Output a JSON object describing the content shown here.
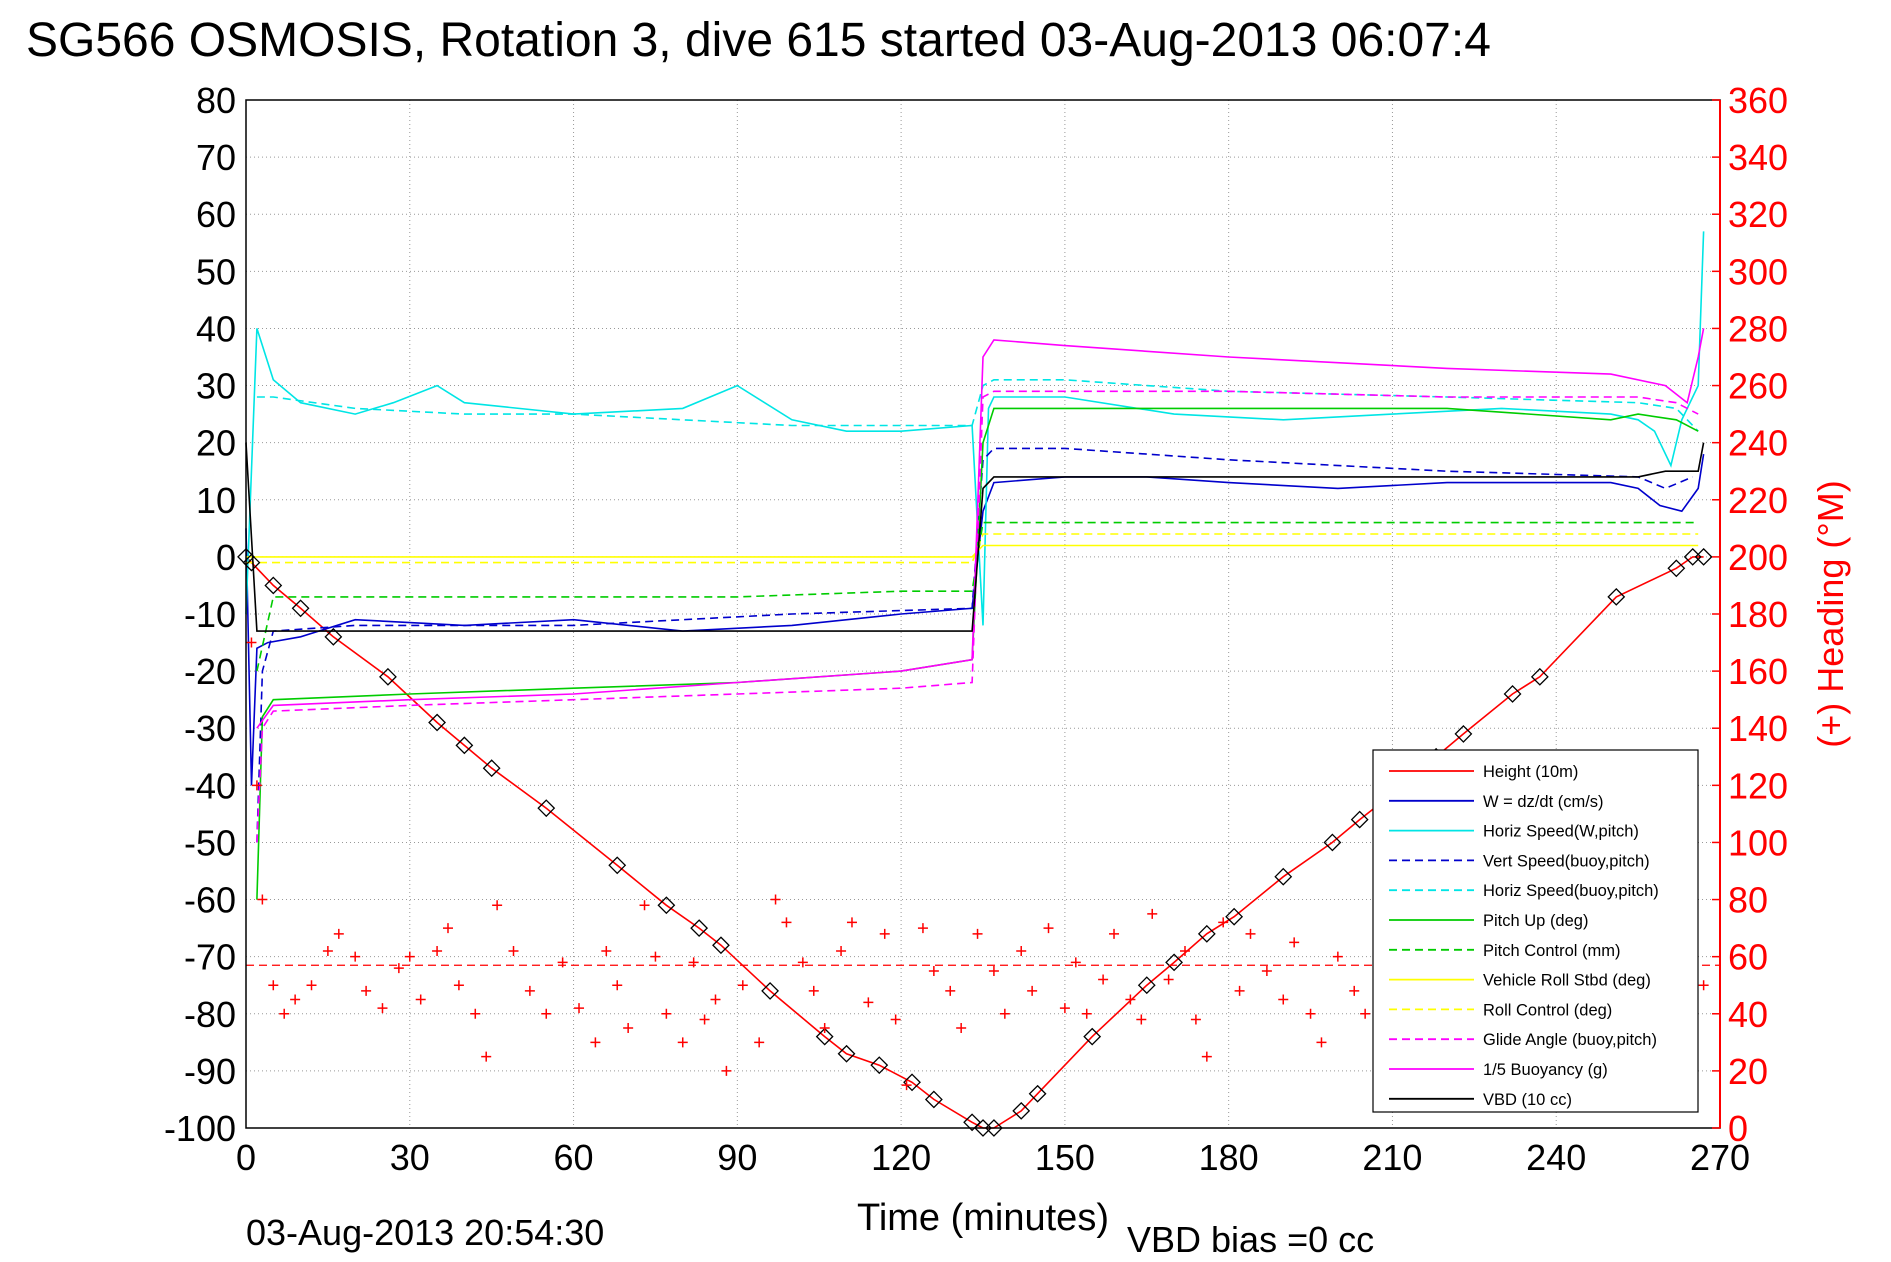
{
  "chart_data": {
    "type": "line",
    "title": "SG566 OSMOSIS, Rotation 3, dive 615 started 03-Aug-2013 06:07:4",
    "xlabel": "Time (minutes)",
    "ylabel_right": "(+) Heading (°M)",
    "xlim": [
      0,
      270
    ],
    "ylim": [
      -100,
      80
    ],
    "ylim_right": [
      0,
      360
    ],
    "x_ticks": [
      "0",
      "30",
      "60",
      "90",
      "120",
      "150",
      "180",
      "210",
      "240",
      "270"
    ],
    "y_ticks": [
      "80",
      "70",
      "60",
      "50",
      "40",
      "30",
      "20",
      "10",
      "0",
      "-10",
      "-20",
      "-30",
      "-40",
      "-50",
      "-60",
      "-70",
      "-80",
      "-90",
      "-100"
    ],
    "y_right_ticks": [
      "360",
      "340",
      "320",
      "300",
      "280",
      "260",
      "240",
      "220",
      "200",
      "180",
      "160",
      "140",
      "120",
      "100",
      "80",
      "60",
      "40",
      "20",
      "0"
    ],
    "grid": true,
    "legend_position": "bottom-right",
    "footer_left": "03-Aug-2013 20:54:30",
    "footer_center": "VBD bias =0 cc",
    "legend": [
      {
        "label": "Height (10m)",
        "color": "#ff0000",
        "dash": "solid"
      },
      {
        "label": "W = dz/dt (cm/s)",
        "color": "#0000cc",
        "dash": "solid"
      },
      {
        "label": "Horiz Speed(W,pitch)",
        "color": "#00e5e5",
        "dash": "solid"
      },
      {
        "label": "Vert Speed(buoy,pitch)",
        "color": "#0000cc",
        "dash": "dashed"
      },
      {
        "label": "Horiz Speed(buoy,pitch)",
        "color": "#00e5e5",
        "dash": "dashed"
      },
      {
        "label": "Pitch Up (deg)",
        "color": "#00cc00",
        "dash": "solid"
      },
      {
        "label": "Pitch Control (mm)",
        "color": "#00cc00",
        "dash": "dashed"
      },
      {
        "label": "Vehicle Roll Stbd (deg)",
        "color": "#ffff00",
        "dash": "solid"
      },
      {
        "label": "Roll Control (deg)",
        "color": "#ffff00",
        "dash": "dashed"
      },
      {
        "label": "Glide Angle (buoy,pitch)",
        "color": "#ff00ff",
        "dash": "dashed"
      },
      {
        "label": "1/5 Buoyancy (g)",
        "color": "#ff00ff",
        "dash": "solid"
      },
      {
        "label": "VBD (10 cc)",
        "color": "#000000",
        "dash": "solid"
      }
    ],
    "series": [
      {
        "name": "Height (10m)",
        "color": "#ff0000",
        "dash": "solid",
        "marker": "diamond",
        "x": [
          0,
          1,
          5,
          10,
          16,
          26,
          35,
          40,
          45,
          55,
          68,
          77,
          83,
          87,
          96,
          106,
          110,
          116,
          122,
          126,
          133,
          135,
          137,
          142,
          145,
          155,
          165,
          170,
          176,
          181,
          190,
          199,
          204,
          208,
          218,
          223,
          232,
          237,
          251,
          262,
          265,
          267
        ],
        "y": [
          0,
          -1,
          -5,
          -9,
          -14,
          -21,
          -29,
          -33,
          -37,
          -44,
          -54,
          -61,
          -65,
          -68,
          -76,
          -84,
          -87,
          -89,
          -92,
          -95,
          -99,
          -100,
          -100,
          -97,
          -94,
          -84,
          -75,
          -71,
          -66,
          -63,
          -56,
          -50,
          -46,
          -43,
          -35,
          -31,
          -24,
          -21,
          -7,
          -2,
          0,
          0
        ]
      },
      {
        "name": "W = dz/dt (cm/s)",
        "color": "#0000cc",
        "dash": "solid",
        "x": [
          0,
          1,
          2,
          4,
          10,
          20,
          40,
          60,
          80,
          100,
          120,
          133,
          135,
          137,
          150,
          165,
          180,
          200,
          220,
          250,
          255,
          259,
          263,
          266,
          267
        ],
        "y": [
          5,
          -40,
          -16,
          -15,
          -14,
          -11,
          -12,
          -11,
          -13,
          -12,
          -10,
          -9,
          8,
          13,
          14,
          14,
          13,
          12,
          13,
          13,
          12,
          9,
          8,
          12,
          18
        ]
      },
      {
        "name": "Horiz Speed(W,pitch)",
        "color": "#00e5e5",
        "dash": "solid",
        "x": [
          0,
          2,
          5,
          10,
          20,
          27,
          35,
          40,
          60,
          80,
          90,
          100,
          110,
          120,
          133,
          135,
          136,
          137,
          150,
          170,
          190,
          210,
          230,
          250,
          255,
          258,
          261,
          263,
          266,
          267
        ],
        "y": [
          -10,
          40,
          31,
          27,
          25,
          27,
          30,
          27,
          25,
          26,
          30,
          24,
          22,
          22,
          23,
          -12,
          26,
          28,
          28,
          25,
          24,
          25,
          26,
          25,
          24,
          22,
          16,
          24,
          30,
          57
        ]
      },
      {
        "name": "Vert Speed(buoy,pitch)",
        "color": "#0000cc",
        "dash": "dashed",
        "x": [
          2,
          3,
          5,
          20,
          60,
          100,
          133,
          135,
          137,
          150,
          180,
          220,
          255,
          260,
          265
        ],
        "y": [
          -50,
          -20,
          -13,
          -12,
          -12,
          -10,
          -9,
          17,
          19,
          19,
          17,
          15,
          14,
          12,
          14
        ]
      },
      {
        "name": "Horiz Speed(buoy,pitch)",
        "color": "#00e5e5",
        "dash": "dashed",
        "x": [
          2,
          5,
          20,
          40,
          60,
          100,
          133,
          135,
          137,
          150,
          180,
          220,
          255,
          262,
          266
        ],
        "y": [
          28,
          28,
          26,
          25,
          25,
          23,
          23,
          30,
          31,
          31,
          29,
          28,
          27,
          26,
          22
        ]
      },
      {
        "name": "Pitch Up (deg)",
        "color": "#00cc00",
        "dash": "solid",
        "x": [
          2,
          3,
          5,
          30,
          60,
          90,
          120,
          133,
          135,
          137,
          150,
          180,
          220,
          250,
          255,
          262,
          266
        ],
        "y": [
          -60,
          -28,
          -25,
          -24,
          -23,
          -22,
          -20,
          -18,
          20,
          26,
          26,
          26,
          26,
          24,
          25,
          24,
          22
        ]
      },
      {
        "name": "Pitch Control (mm)",
        "color": "#00cc00",
        "dash": "dashed",
        "x": [
          2,
          5,
          30,
          60,
          90,
          120,
          133,
          135,
          137,
          150,
          180,
          220,
          260,
          266
        ],
        "y": [
          -20,
          -7,
          -7,
          -7,
          -7,
          -6,
          -6,
          6,
          6,
          6,
          6,
          6,
          6,
          6
        ]
      },
      {
        "name": "Vehicle Roll Stbd (deg)",
        "color": "#ffff00",
        "dash": "solid",
        "x": [
          0,
          5,
          30,
          60,
          90,
          120,
          133,
          135,
          137,
          150,
          180,
          220,
          255,
          260,
          266
        ],
        "y": [
          0,
          0,
          0,
          0,
          0,
          0,
          0,
          2,
          2,
          2,
          2,
          2,
          2,
          2,
          2
        ]
      },
      {
        "name": "Roll Control (deg)",
        "color": "#ffff00",
        "dash": "dashed",
        "x": [
          0,
          5,
          30,
          60,
          90,
          120,
          133,
          135,
          137,
          150,
          180,
          220,
          260,
          266
        ],
        "y": [
          -1,
          -1,
          -1,
          -1,
          -1,
          -1,
          -1,
          4,
          4,
          4,
          4,
          4,
          4,
          4
        ]
      },
      {
        "name": "Glide Angle (buoy,pitch)",
        "color": "#ff00ff",
        "dash": "dashed",
        "x": [
          2,
          3,
          5,
          30,
          60,
          90,
          120,
          133,
          135,
          137,
          150,
          180,
          220,
          255,
          262,
          266
        ],
        "y": [
          -50,
          -30,
          -27,
          -26,
          -25,
          -24,
          -23,
          -22,
          28,
          29,
          29,
          29,
          28,
          28,
          27,
          25
        ]
      },
      {
        "name": "1/5 Buoyancy (g)",
        "color": "#ff00ff",
        "dash": "solid",
        "x": [
          2,
          5,
          30,
          60,
          90,
          120,
          133,
          135,
          137,
          150,
          180,
          220,
          250,
          260,
          264,
          266,
          267
        ],
        "y": [
          -30,
          -26,
          -25,
          -24,
          -22,
          -20,
          -18,
          35,
          38,
          37,
          35,
          33,
          32,
          30,
          27,
          35,
          40
        ]
      },
      {
        "name": "VBD (10 cc)",
        "color": "#000000",
        "dash": "solid",
        "x": [
          0,
          2,
          3,
          30,
          60,
          90,
          120,
          133,
          135,
          137,
          150,
          180,
          220,
          255,
          260,
          266,
          267
        ],
        "y": [
          20,
          -13,
          -13,
          -13,
          -13,
          -13,
          -13,
          -13,
          12,
          14,
          14,
          14,
          14,
          14,
          15,
          15,
          20
        ]
      }
    ],
    "heading_series": {
      "name": "Heading (°M)",
      "axis": "right",
      "color": "#ff0000",
      "marker": "plus",
      "mean_line": 57,
      "x": [
        1,
        2,
        3,
        5,
        7,
        9,
        12,
        15,
        17,
        20,
        22,
        25,
        28,
        30,
        32,
        35,
        37,
        39,
        42,
        44,
        46,
        49,
        52,
        55,
        58,
        61,
        64,
        66,
        68,
        70,
        73,
        75,
        77,
        80,
        82,
        84,
        86,
        88,
        91,
        94,
        97,
        99,
        102,
        104,
        106,
        109,
        111,
        114,
        117,
        119,
        121,
        124,
        126,
        129,
        131,
        134,
        137,
        139,
        142,
        144,
        147,
        150,
        152,
        154,
        157,
        159,
        162,
        164,
        166,
        169,
        172,
        174,
        176,
        179,
        182,
        184,
        187,
        190,
        192,
        195,
        197,
        200,
        203,
        205,
        208,
        211,
        214,
        216,
        219,
        222,
        225,
        227,
        230,
        233,
        236,
        238,
        241,
        244,
        247,
        250,
        253,
        256,
        259,
        262,
        265,
        267
      ],
      "y": [
        170,
        120,
        80,
        50,
        40,
        45,
        50,
        62,
        68,
        60,
        48,
        42,
        56,
        60,
        45,
        62,
        70,
        50,
        40,
        25,
        78,
        62,
        48,
        40,
        58,
        42,
        30,
        62,
        50,
        35,
        78,
        60,
        40,
        30,
        58,
        38,
        45,
        20,
        50,
        30,
        80,
        72,
        58,
        48,
        35,
        62,
        72,
        44,
        68,
        38,
        15,
        70,
        55,
        48,
        35,
        68,
        55,
        40,
        62,
        48,
        70,
        42,
        58,
        40,
        52,
        68,
        45,
        38,
        75,
        52,
        62,
        38,
        25,
        72,
        48,
        68,
        55,
        45,
        65,
        40,
        30,
        60,
        48,
        40,
        78,
        55,
        42,
        62,
        35,
        74,
        50,
        40,
        62,
        52,
        45,
        70,
        38,
        52,
        62,
        48,
        40,
        55,
        62,
        48,
        45,
        50
      ]
    }
  }
}
